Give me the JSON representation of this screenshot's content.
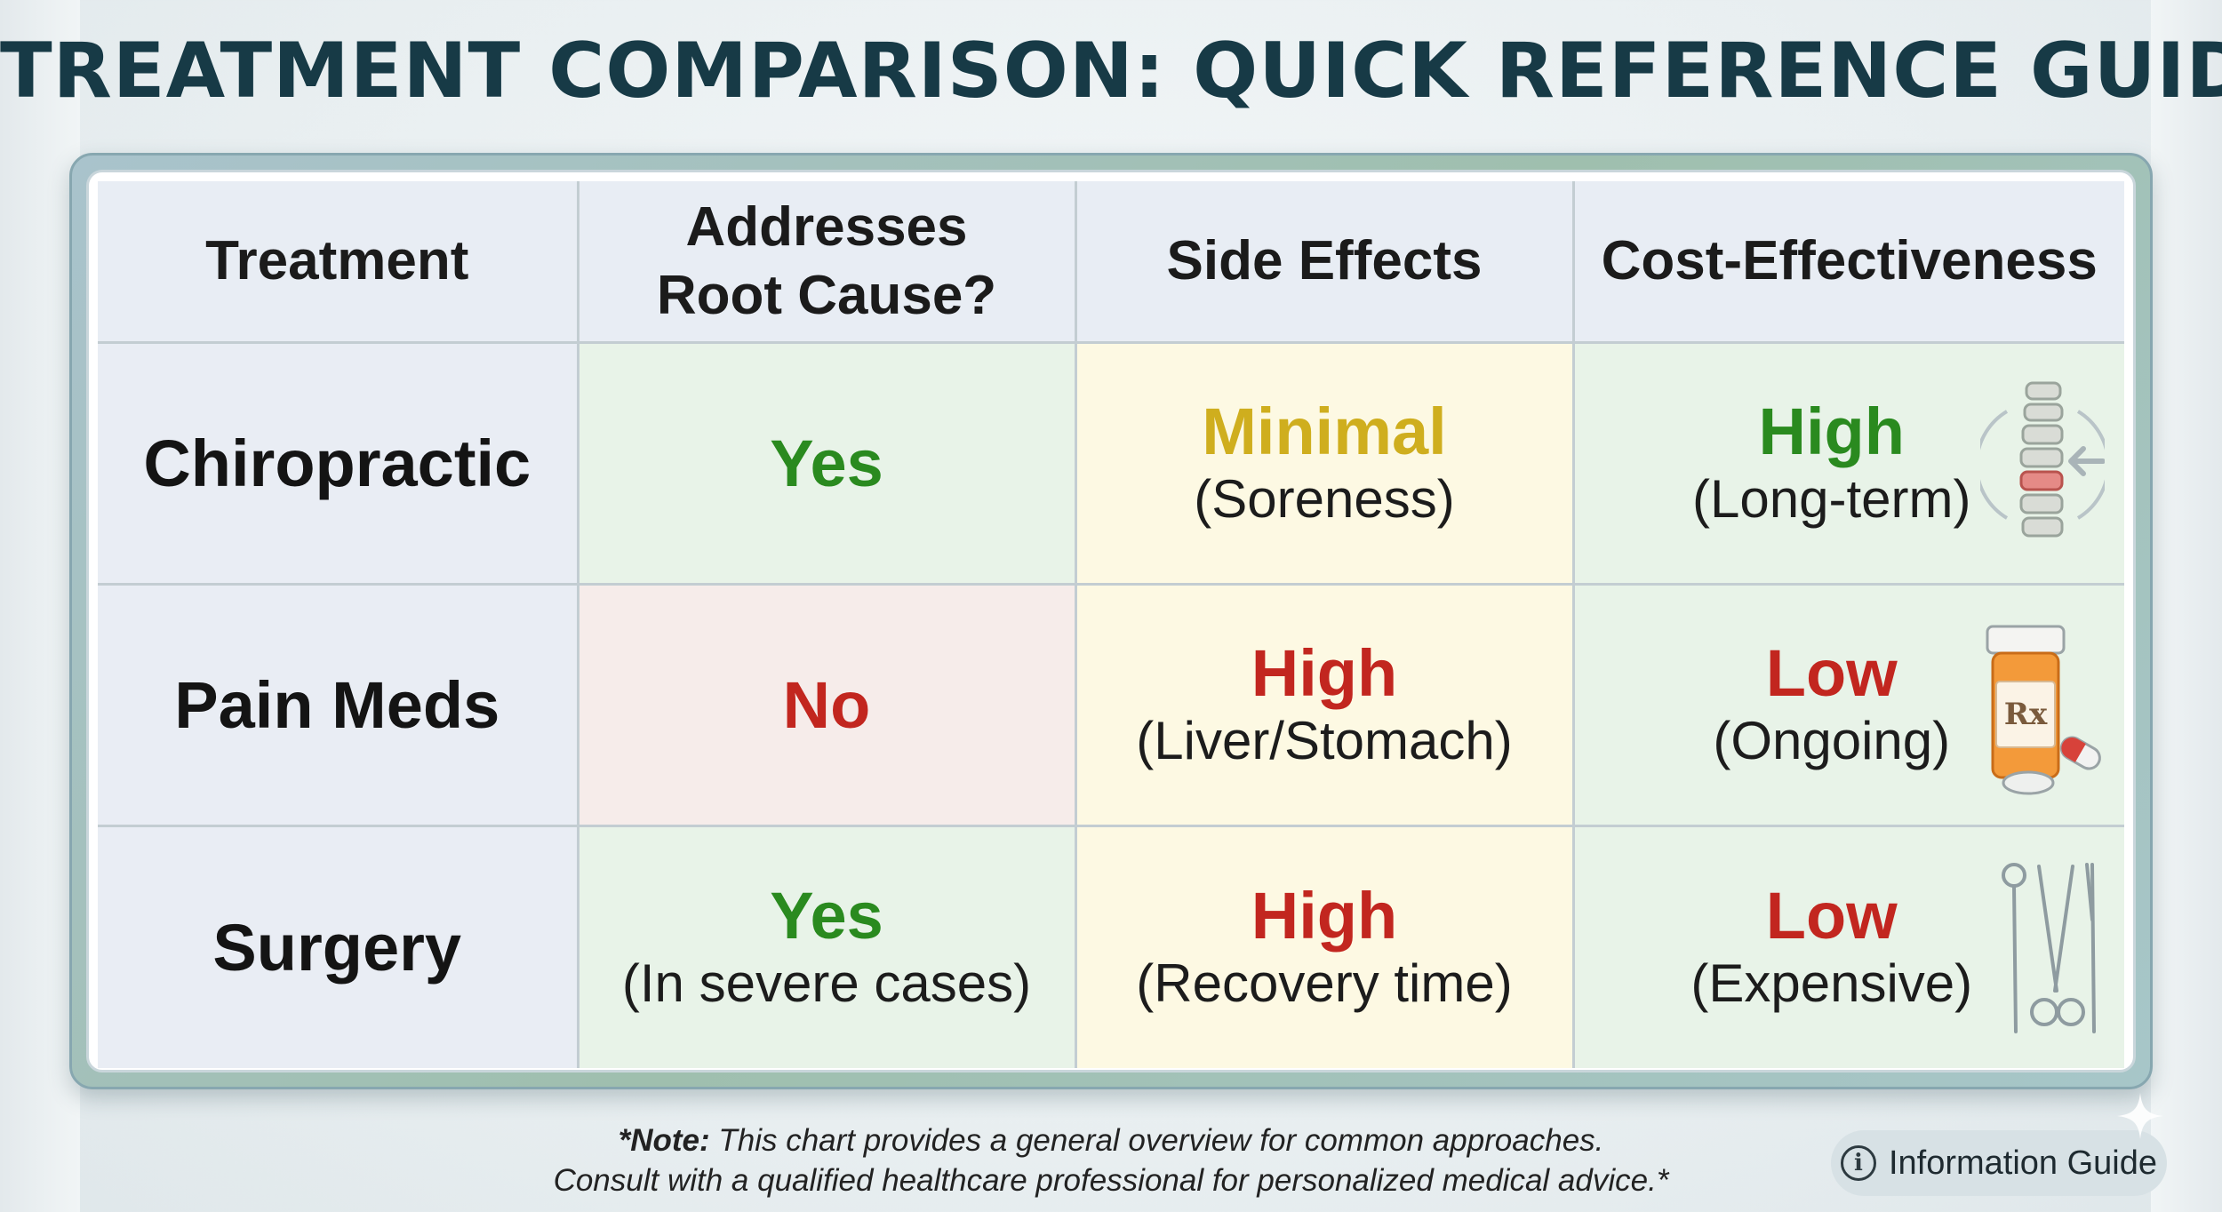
{
  "title": "TREATMENT COMPARISON: QUICK REFERENCE GUIDE",
  "table": {
    "headers": {
      "treatment": "Treatment",
      "root_cause_line1": "Addresses",
      "root_cause_line2": "Root Cause?",
      "side_effects": "Side Effects",
      "cost": "Cost-Effectiveness"
    },
    "rows": [
      {
        "treatment": "Chiropractic",
        "root_cause": "Yes",
        "root_cause_note": "",
        "side_effects": "Minimal",
        "side_effects_note": "(Soreness)",
        "cost": "High",
        "cost_note": "(Long-term)",
        "icon": "spine-icon"
      },
      {
        "treatment": "Pain Meds",
        "root_cause": "No",
        "root_cause_note": "",
        "side_effects": "High",
        "side_effects_note": "(Liver/Stomach)",
        "cost": "Low",
        "cost_note": "(Ongoing)",
        "icon": "pill-bottle-icon",
        "icon_label": "Rx"
      },
      {
        "treatment": "Surgery",
        "root_cause": "Yes",
        "root_cause_note": "(In severe cases)",
        "side_effects": "High",
        "side_effects_note": "(Recovery time)",
        "cost": "Low",
        "cost_note": "(Expensive)",
        "icon": "surgical-tools-icon"
      }
    ]
  },
  "note": {
    "bold": "*Note:",
    "line1": " This chart provides a general overview for common approaches.",
    "line2": "Consult with a qualified healthcare professional for personalized medical advice.*"
  },
  "badge": {
    "icon": "info-icon",
    "icon_glyph": "i",
    "label": "Information Guide"
  },
  "colors": {
    "title": "#173a46",
    "green": "#2a8a1f",
    "red": "#c2261f",
    "gold": "#cfae1e",
    "frame": "#9fbfae"
  }
}
